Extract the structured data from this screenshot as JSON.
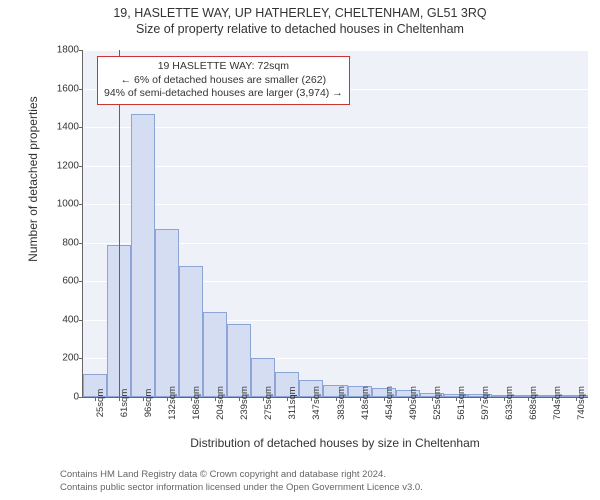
{
  "chart": {
    "type": "histogram",
    "title_line1": "19, HASLETTE WAY, UP HATHERLEY, CHELTENHAM, GL51 3RQ",
    "title_line2": "Size of property relative to detached houses in Cheltenham",
    "xlabel": "Distribution of detached houses by size in Cheltenham",
    "ylabel": "Number of detached properties",
    "background_color": "#ffffff",
    "plot_background": "#eef1f8",
    "grid_color": "#ffffff",
    "axis_color": "#666666",
    "bar_fill": "#d5ddf3",
    "bar_border": "#8da5d6",
    "reference_line_color": "#cc3333",
    "text_color": "#333333",
    "ylim": [
      0,
      1800
    ],
    "ytick_step": 200,
    "y_ticks": [
      0,
      200,
      400,
      600,
      800,
      1000,
      1200,
      1400,
      1600,
      1800
    ],
    "x_tick_labels": [
      "25sqm",
      "61sqm",
      "96sqm",
      "132sqm",
      "168sqm",
      "204sqm",
      "239sqm",
      "275sqm",
      "311sqm",
      "347sqm",
      "383sqm",
      "418sqm",
      "454sqm",
      "490sqm",
      "525sqm",
      "561sqm",
      "597sqm",
      "633sqm",
      "668sqm",
      "704sqm",
      "740sqm"
    ],
    "bar_values": [
      120,
      790,
      1470,
      870,
      680,
      440,
      380,
      200,
      130,
      90,
      60,
      55,
      45,
      35,
      22,
      18,
      14,
      12,
      10,
      8,
      7
    ],
    "reference_position": 0.072,
    "annotation": {
      "line1": "19 HASLETTE WAY: 72sqm",
      "line2": "← 6% of detached houses are smaller (262)",
      "line3": "94% of semi-detached houses are larger (3,974) →",
      "box_border": "#cc3333",
      "box_bg": "#ffffff",
      "fontsize": 10.5
    },
    "footer_line1": "Contains HM Land Registry data © Crown copyright and database right 2024.",
    "footer_line2": "Contains public sector information licensed under the Open Government Licence v3.0.",
    "title_fontsize": 12.5,
    "axis_label_fontsize": 12,
    "tick_fontsize": 10,
    "footer_fontsize": 9.5,
    "bar_width_ratio": 1.0
  }
}
